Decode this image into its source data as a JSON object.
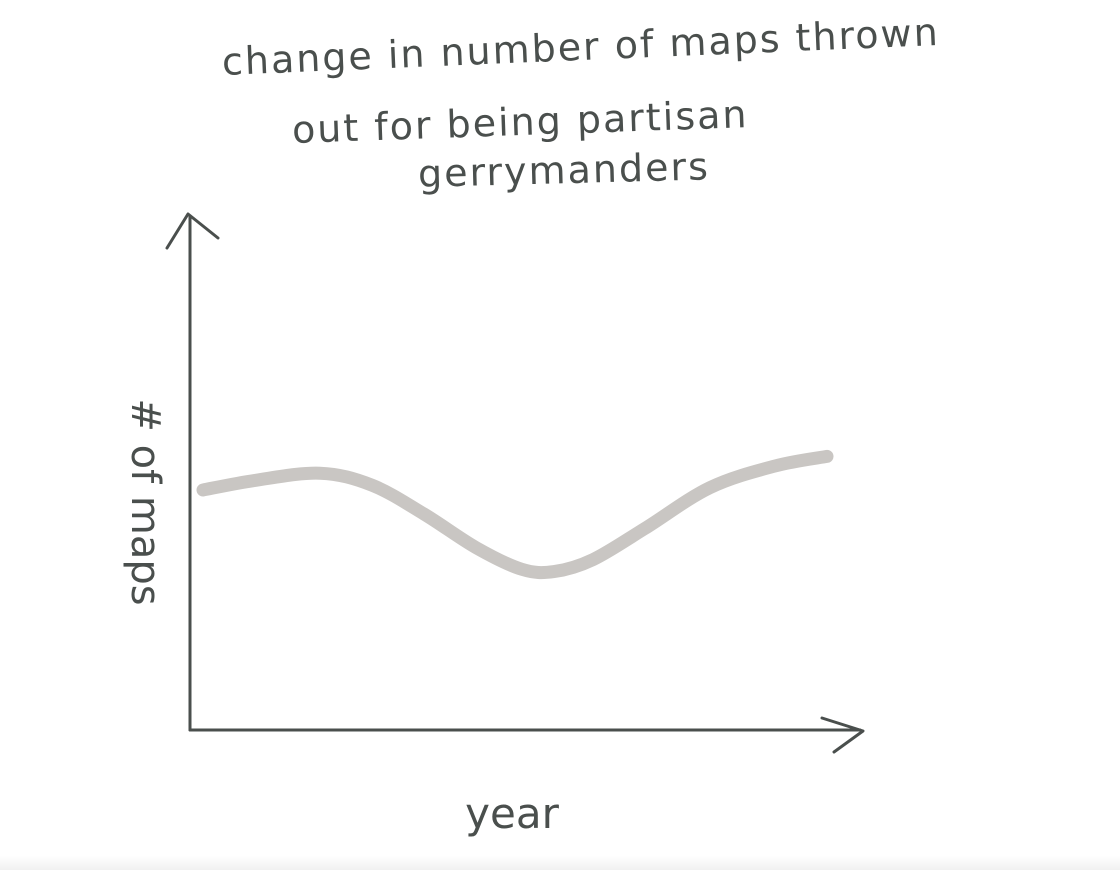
{
  "chart_data": {
    "type": "line",
    "title_lines": [
      "change in number of maps thrown",
      "out for being partisan",
      "gerrymanders"
    ],
    "xlabel": "year",
    "ylabel": "# of maps",
    "ylim": [
      0,
      100
    ],
    "xlim": [
      0,
      100
    ],
    "grid": false,
    "series": [
      {
        "values": [
          {
            "x": 2,
            "y": 50
          },
          {
            "x": 10,
            "y": 52
          },
          {
            "x": 20,
            "y": 53.5
          },
          {
            "x": 28,
            "y": 51
          },
          {
            "x": 36,
            "y": 45
          },
          {
            "x": 44,
            "y": 38
          },
          {
            "x": 51,
            "y": 33.5
          },
          {
            "x": 56,
            "y": 33
          },
          {
            "x": 62,
            "y": 35.5
          },
          {
            "x": 70,
            "y": 42
          },
          {
            "x": 80,
            "y": 50.5
          },
          {
            "x": 90,
            "y": 55
          },
          {
            "x": 98,
            "y": 57
          }
        ]
      }
    ]
  },
  "colors": {
    "axis": "#4a4f4d",
    "line": "#c9c6c3",
    "text": "#4a4f4d"
  }
}
